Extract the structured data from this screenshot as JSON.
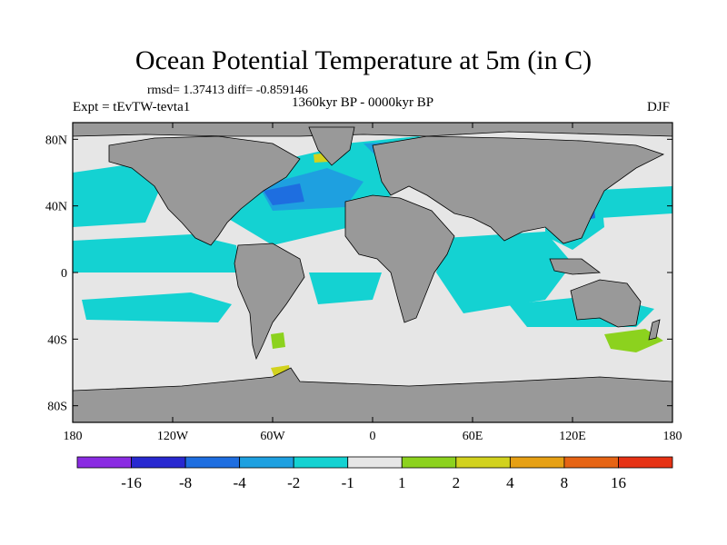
{
  "title": "Ocean Potential Temperature at 5m (in C)",
  "stats": "rmsd= 1.37413 diff= -0.859146",
  "experiment": "Expt = tEvTW-tevta1",
  "period": "1360kyr BP - 0000kyr BP",
  "season": "DJF",
  "axes": {
    "x_ticks": [
      {
        "lon": -180,
        "label": "180"
      },
      {
        "lon": -120,
        "label": "120W"
      },
      {
        "lon": -60,
        "label": "60W"
      },
      {
        "lon": 0,
        "label": "0"
      },
      {
        "lon": 60,
        "label": "60E"
      },
      {
        "lon": 120,
        "label": "120E"
      },
      {
        "lon": 180,
        "label": "180"
      }
    ],
    "y_ticks": [
      {
        "lat": 80,
        "label": "80N"
      },
      {
        "lat": 40,
        "label": "40N"
      },
      {
        "lat": 0,
        "label": "0"
      },
      {
        "lat": -40,
        "label": "40S"
      },
      {
        "lat": -80,
        "label": "80S"
      }
    ],
    "lon_range": [
      -180,
      180
    ],
    "lat_range": [
      -90,
      90
    ]
  },
  "colorbar": {
    "colors": [
      "#8a2be2",
      "#2828d0",
      "#1e6ee0",
      "#1ea0e0",
      "#14d2d2",
      "#e6e6e6",
      "#8cd21e",
      "#d2d21e",
      "#e6a014",
      "#e66414",
      "#e63214"
    ],
    "labels": [
      "-16",
      "-8",
      "-4",
      "-2",
      "-1",
      "1",
      "2",
      "4",
      "8",
      "16"
    ]
  },
  "colors": {
    "land": "#999999",
    "neutral": "#e6e6e6",
    "cool1": "#14d2d2",
    "cool2": "#1ea0e0",
    "cool3": "#1e6ee0",
    "warm1": "#8cd21e",
    "warm2": "#d2d21e"
  }
}
